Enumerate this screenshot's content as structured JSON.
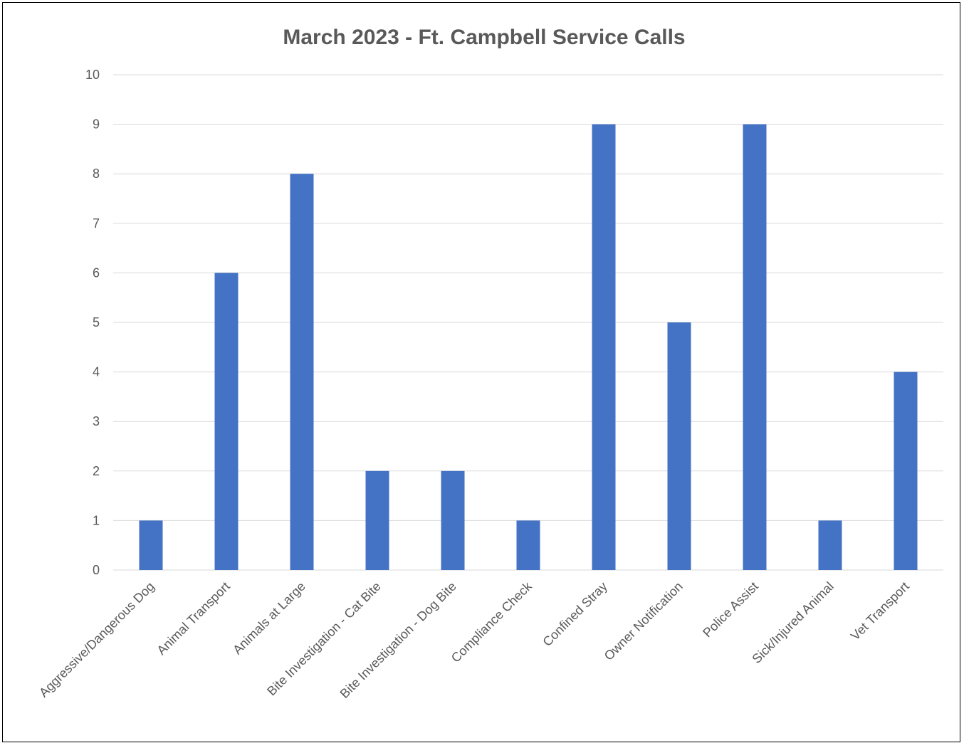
{
  "chart_data": {
    "type": "bar",
    "title": "March 2023 - Ft. Campbell Service Calls",
    "xlabel": "",
    "ylabel": "",
    "categories": [
      "Aggressive/Dangerous Dog",
      "Animal Transport",
      "Animals at Large",
      "Bite Investigation - Cat Bite",
      "Bite Investigation - Dog Bite",
      "Compliance Check",
      "Confined Stray",
      "Owner Notification",
      "Police Assist",
      "Sick/Injured Animal",
      "Vet Transport"
    ],
    "values": [
      1,
      6,
      8,
      2,
      2,
      1,
      9,
      5,
      9,
      1,
      4
    ],
    "ylim": [
      0,
      10
    ],
    "yticks": [
      0,
      1,
      2,
      3,
      4,
      5,
      6,
      7,
      8,
      9,
      10
    ],
    "grid": true,
    "legend": "none",
    "bar_color": "#4472C4",
    "grid_color": "#D9D9D9",
    "text_color": "#595959"
  }
}
